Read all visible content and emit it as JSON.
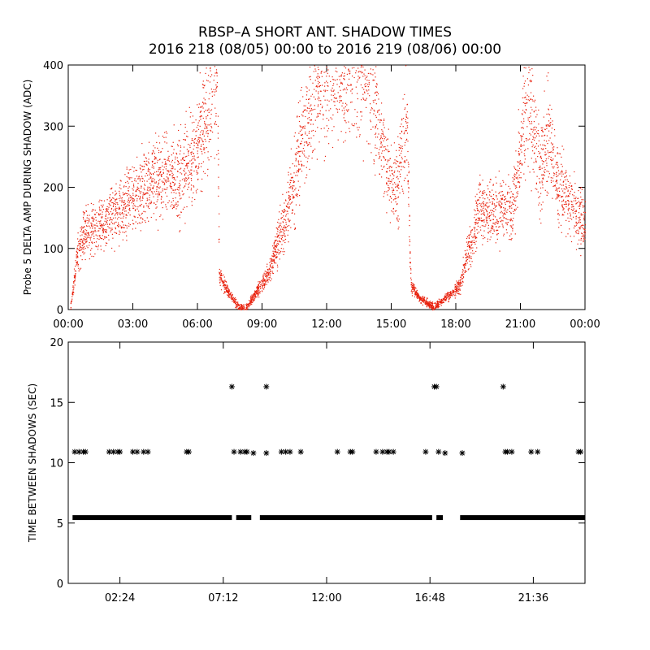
{
  "title": "RBSP–A SHORT ANT. SHADOW TIMES",
  "subtitle": "2016 218 (08/05) 00:00 to 2016 219 (08/06) 00:00",
  "colors": {
    "top_points": "#e8200c",
    "bottom_points": "#000000",
    "axes": "#000000"
  },
  "chart_data": [
    {
      "type": "scatter",
      "name": "top",
      "ylabel": "Probe 5 DELTA AMP DURING SHADOW (ADC)",
      "xlabel": "",
      "x_unit": "hours",
      "xlim": [
        0,
        24
      ],
      "ylim": [
        0,
        400
      ],
      "x_ticks": [
        0,
        3,
        6,
        9,
        12,
        15,
        18,
        21,
        24
      ],
      "x_tick_labels": [
        "00:00",
        "03:00",
        "06:00",
        "09:00",
        "12:00",
        "15:00",
        "18:00",
        "21:00",
        "00:00"
      ],
      "y_ticks": [
        0,
        100,
        200,
        300,
        400
      ],
      "y_tick_labels": [
        "0",
        "100",
        "200",
        "300",
        "400"
      ],
      "grid": false,
      "legend": "none",
      "trend": [
        [
          0.1,
          5
        ],
        [
          0.4,
          90
        ],
        [
          0.7,
          125
        ],
        [
          1.0,
          130
        ],
        [
          1.5,
          140
        ],
        [
          2.0,
          155
        ],
        [
          2.5,
          165
        ],
        [
          3.0,
          185
        ],
        [
          3.5,
          200
        ],
        [
          4.0,
          210
        ],
        [
          4.5,
          220
        ],
        [
          5.0,
          215
        ],
        [
          5.5,
          230
        ],
        [
          6.0,
          265
        ],
        [
          6.5,
          330
        ],
        [
          6.9,
          390
        ],
        [
          7.0,
          60
        ],
        [
          7.3,
          35
        ],
        [
          7.6,
          20
        ],
        [
          7.9,
          5
        ],
        [
          8.2,
          0
        ],
        [
          9.3,
          60
        ],
        [
          9.6,
          100
        ],
        [
          10.0,
          140
        ],
        [
          10.4,
          200
        ],
        [
          10.8,
          270
        ],
        [
          11.2,
          330
        ],
        [
          11.6,
          380
        ],
        [
          11.9,
          400
        ],
        [
          13.8,
          400
        ],
        [
          14.2,
          340
        ],
        [
          14.6,
          260
        ],
        [
          15.0,
          200
        ],
        [
          15.3,
          210
        ],
        [
          15.7,
          320
        ],
        [
          15.9,
          40
        ],
        [
          16.3,
          20
        ],
        [
          16.7,
          10
        ],
        [
          17.0,
          5
        ],
        [
          18.2,
          40
        ],
        [
          18.5,
          90
        ],
        [
          18.8,
          120
        ],
        [
          19.0,
          160
        ],
        [
          19.5,
          160
        ],
        [
          20.0,
          160
        ],
        [
          20.6,
          165
        ],
        [
          21.0,
          250
        ],
        [
          21.3,
          380
        ],
        [
          21.6,
          300
        ],
        [
          21.9,
          220
        ],
        [
          22.3,
          290
        ],
        [
          22.7,
          210
        ],
        [
          23.2,
          180
        ],
        [
          24.0,
          140
        ]
      ]
    },
    {
      "type": "scatter",
      "name": "bottom",
      "ylabel": "TIME BETWEEN SHADOWS (SEC)",
      "xlabel": "",
      "x_unit": "hours",
      "xlim": [
        0,
        24
      ],
      "ylim": [
        0,
        20
      ],
      "x_ticks": [
        2.4,
        7.2,
        12.0,
        16.8,
        21.6
      ],
      "x_tick_labels": [
        "02:24",
        "07:12",
        "12:00",
        "16:48",
        "21:36"
      ],
      "y_ticks": [
        0,
        5,
        10,
        15,
        20
      ],
      "y_tick_labels": [
        "0",
        "5",
        "10",
        "15",
        "20"
      ],
      "grid": false,
      "legend": "none",
      "baseline_value": 5.45,
      "baseline_segments": [
        [
          0.2,
          7.6
        ],
        [
          7.8,
          8.5
        ],
        [
          8.9,
          16.9
        ],
        [
          17.1,
          17.4
        ],
        [
          18.2,
          24.0
        ]
      ],
      "points": [
        [
          0.3,
          10.9
        ],
        [
          0.5,
          10.9
        ],
        [
          0.7,
          10.9
        ],
        [
          0.8,
          10.9
        ],
        [
          1.9,
          10.9
        ],
        [
          2.1,
          10.9
        ],
        [
          2.3,
          10.9
        ],
        [
          2.4,
          10.9
        ],
        [
          3.0,
          10.9
        ],
        [
          3.2,
          10.9
        ],
        [
          3.5,
          10.9
        ],
        [
          3.7,
          10.9
        ],
        [
          5.5,
          10.9
        ],
        [
          5.6,
          10.9
        ],
        [
          7.6,
          16.3
        ],
        [
          7.7,
          10.9
        ],
        [
          8.0,
          10.9
        ],
        [
          8.2,
          10.9
        ],
        [
          8.3,
          10.9
        ],
        [
          8.6,
          10.8
        ],
        [
          9.2,
          16.3
        ],
        [
          9.2,
          10.8
        ],
        [
          9.9,
          10.9
        ],
        [
          10.1,
          10.9
        ],
        [
          10.3,
          10.9
        ],
        [
          10.8,
          10.9
        ],
        [
          12.5,
          10.9
        ],
        [
          13.1,
          10.9
        ],
        [
          13.2,
          10.9
        ],
        [
          14.3,
          10.9
        ],
        [
          14.6,
          10.9
        ],
        [
          14.8,
          10.9
        ],
        [
          14.9,
          10.9
        ],
        [
          15.1,
          10.9
        ],
        [
          16.6,
          10.9
        ],
        [
          17.0,
          16.3
        ],
        [
          17.1,
          16.3
        ],
        [
          17.2,
          10.9
        ],
        [
          17.5,
          10.8
        ],
        [
          18.3,
          10.8
        ],
        [
          20.2,
          16.3
        ],
        [
          20.3,
          10.9
        ],
        [
          20.4,
          10.9
        ],
        [
          20.6,
          10.9
        ],
        [
          21.5,
          10.9
        ],
        [
          21.8,
          10.9
        ],
        [
          23.7,
          10.9
        ],
        [
          23.8,
          10.9
        ]
      ]
    }
  ]
}
